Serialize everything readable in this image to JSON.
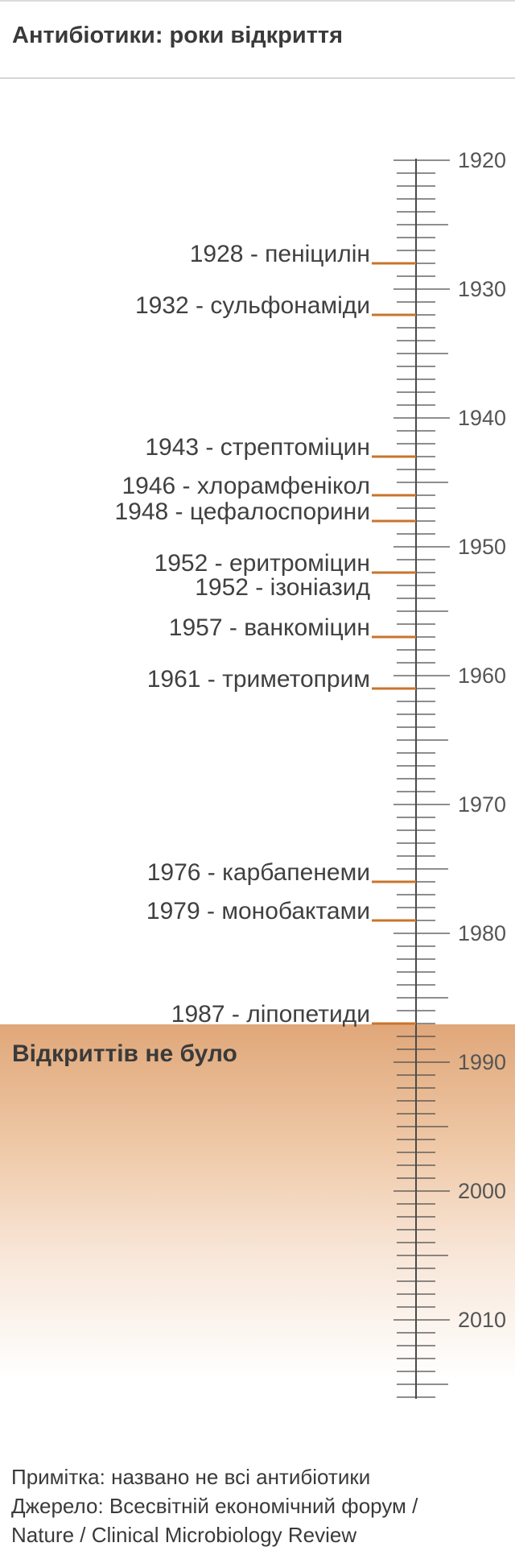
{
  "header": {
    "title": "Антибіотики: роки відкриття"
  },
  "axis": {
    "start": 1920,
    "end": 2016,
    "major_ticks": [
      1920,
      1930,
      1940,
      1950,
      1960,
      1970,
      1980,
      1990,
      2000,
      2010
    ]
  },
  "events": [
    {
      "year": 1928,
      "label": "1928 - пеніцилін"
    },
    {
      "year": 1932,
      "label": "1932 - сульфонаміди"
    },
    {
      "year": 1943,
      "label": "1943 - стрептоміцин"
    },
    {
      "year": 1946,
      "label": "1946 - хлорамфенікол"
    },
    {
      "year": 1948,
      "label": "1948 - цефалоспорини"
    },
    {
      "year": 1952,
      "label": "1952 - еритроміцин"
    },
    {
      "year": 1952,
      "label": "1952 - ізоніазид"
    },
    {
      "year": 1957,
      "label": "1957 - ванкоміцин"
    },
    {
      "year": 1961,
      "label": "1961 - триметоприм"
    },
    {
      "year": 1976,
      "label": "1976 - карбапенеми"
    },
    {
      "year": 1979,
      "label": "1979 - монобактами"
    },
    {
      "year": 1987,
      "label": "1987 - ліпопетиди"
    }
  ],
  "no_discovery": {
    "label": "Відкриттів не було",
    "from_year": 1987
  },
  "colors": {
    "marker": "#c8742c",
    "axis": "#4a4a4a",
    "band": "#e0a779"
  },
  "footer": {
    "note": "Примітка: названо не всі антибіотики",
    "source_line1": "Джерело: Всесвітній економічний форум /",
    "source_line2": "Nature / Clinical Microbiology Review"
  }
}
